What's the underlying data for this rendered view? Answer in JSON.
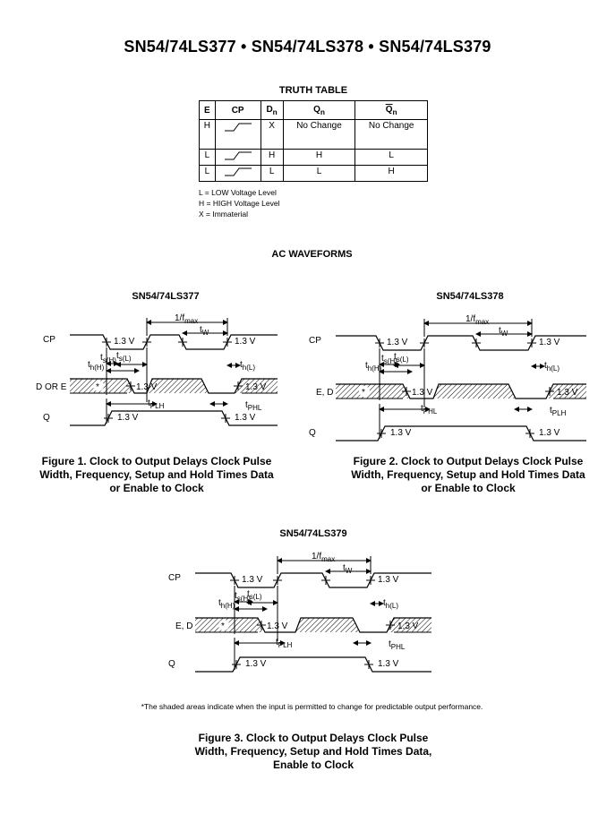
{
  "page_title": "SN54/74LS377 • SN54/74LS378 • SN54/74LS379",
  "truth_table": {
    "title": "TRUTH TABLE",
    "headers": [
      "E",
      "CP",
      "D",
      "Q",
      "Q"
    ],
    "header_subs": [
      "",
      "",
      "n",
      "n",
      "n"
    ],
    "rows": [
      [
        "H",
        "rising-edge",
        "X",
        "No Change",
        "No Change"
      ],
      [
        "L",
        "rising-edge",
        "H",
        "H",
        "L"
      ],
      [
        "L",
        "rising-edge",
        "L",
        "L",
        "H"
      ]
    ],
    "legend": [
      "L = LOW Voltage Level",
      "H = HIGH Voltage Level",
      "X = Immaterial"
    ]
  },
  "ac_waveforms_title": "AC  WAVEFORMS",
  "fig1": {
    "subtitle": "SN54/74LS377",
    "labels": {
      "cp": "CP",
      "data": "D OR E",
      "q": "Q",
      "threshold": "1.3 V",
      "fmax_pre": "1/f",
      "fmax_sub": "max",
      "tw": "t",
      "tw_sub": "W",
      "tsh": "t",
      "tsh_sub": "s(H)",
      "tsl": "t",
      "tsl_sub": "s(L)",
      "thh": "t",
      "thh_sub": "h(H)",
      "thl": "t",
      "thl_sub": "h(L)",
      "tplh": "t",
      "tplh_sub": "PLH",
      "tphl": "t",
      "tphl_sub": "PHL",
      "star": "*"
    },
    "caption": [
      "Figure 1. Clock to Output Delays Clock Pulse",
      "Width, Frequency, Setup and Hold Times Data",
      "or Enable to Clock"
    ]
  },
  "fig2": {
    "subtitle": "SN54/74LS378",
    "labels": {
      "cp": "CP",
      "data": "E, D",
      "q": "Q",
      "threshold": "1.3 V",
      "fmax_pre": "1/f",
      "fmax_sub": "max",
      "tw": "t",
      "tw_sub": "W",
      "tsh": "t",
      "tsh_sub": "s(H)",
      "tsl": "t",
      "tsl_sub": "s(L)",
      "thh": "t",
      "thh_sub": "h(H)",
      "thl": "t",
      "thl_sub": "h(L)",
      "tplh": "t",
      "tplh_sub": "PHL",
      "tphl": "t",
      "tphl_sub": "PLH",
      "star": "*"
    },
    "caption": [
      "Figure 2. Clock to Output Delays Clock Pulse",
      "Width, Frequency, Setup and Hold Times Data",
      "or Enable to Clock"
    ]
  },
  "fig3": {
    "subtitle": "SN54/74LS379",
    "labels": {
      "cp": "CP",
      "data": "E, D",
      "q": "Q",
      "threshold": "1.3 V",
      "fmax_pre": "1/f",
      "fmax_sub": "max",
      "tw": "t",
      "tw_sub": "W",
      "tsh": "t",
      "tsh_sub": "s(H)",
      "tsl": "t",
      "tsl_sub": "s(L)",
      "thh": "t",
      "thh_sub": "h(H)",
      "thl": "t",
      "thl_sub": "h(L)",
      "tplh": "t",
      "tplh_sub": "PLH",
      "tphl": "t",
      "tphl_sub": "PHL",
      "star": "*"
    },
    "caption": [
      "Figure 3. Clock to Output Delays Clock Pulse",
      "Width, Frequency, Setup and Hold Times Data,",
      "Enable to Clock"
    ]
  },
  "footnote": "*The shaded areas indicate when the input is permitted to change for predictable output performance."
}
